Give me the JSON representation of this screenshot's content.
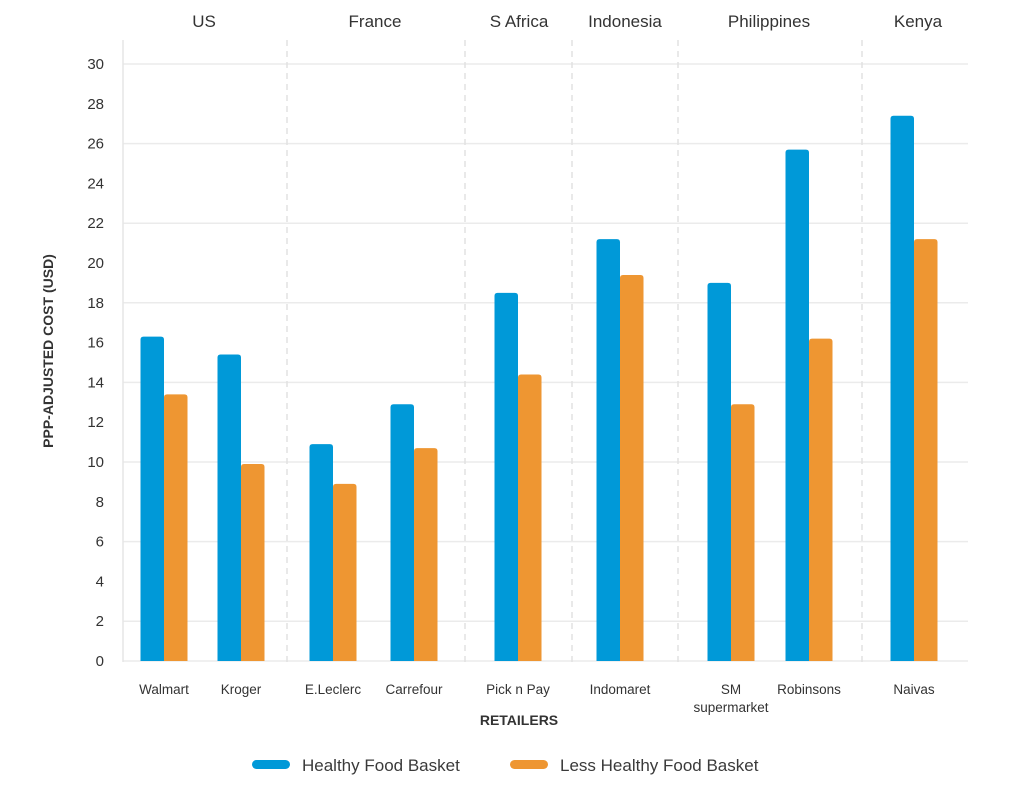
{
  "chart_data": {
    "type": "bar",
    "title": "",
    "xlabel": "RETAILERS",
    "ylabel": "PPP-ADJUSTED COST (USD)",
    "ylim": [
      0,
      30
    ],
    "yticks": [
      0,
      2,
      4,
      6,
      8,
      10,
      12,
      14,
      16,
      18,
      20,
      22,
      24,
      26,
      28,
      30
    ],
    "grid": true,
    "legend_position": "bottom-center",
    "groups": [
      {
        "country": "US",
        "categories": [
          "Walmart",
          "Kroger"
        ]
      },
      {
        "country": "France",
        "categories": [
          "E.Leclerc",
          "Carrefour"
        ]
      },
      {
        "country": "S Africa",
        "categories": [
          "Pick n Pay"
        ]
      },
      {
        "country": "Indonesia",
        "categories": [
          "Indomaret"
        ]
      },
      {
        "country": "Philippines",
        "categories": [
          "SM supermarket",
          "Robinsons"
        ]
      },
      {
        "country": "Kenya",
        "categories": [
          "Naivas"
        ]
      }
    ],
    "categories": [
      "Walmart",
      "Kroger",
      "E.Leclerc",
      "Carrefour",
      "Pick n Pay",
      "Indomaret",
      "SM supermarket",
      "Robinsons",
      "Naivas"
    ],
    "series": [
      {
        "name": "Healthy Food Basket",
        "color": "#0099d8",
        "values": [
          16.3,
          15.4,
          10.9,
          12.9,
          18.5,
          21.2,
          19.0,
          25.7,
          27.4
        ]
      },
      {
        "name": "Less Healthy Food Basket",
        "color": "#ee9632",
        "values": [
          13.4,
          9.9,
          8.9,
          10.7,
          14.4,
          19.4,
          12.9,
          16.2,
          21.2
        ]
      }
    ]
  }
}
